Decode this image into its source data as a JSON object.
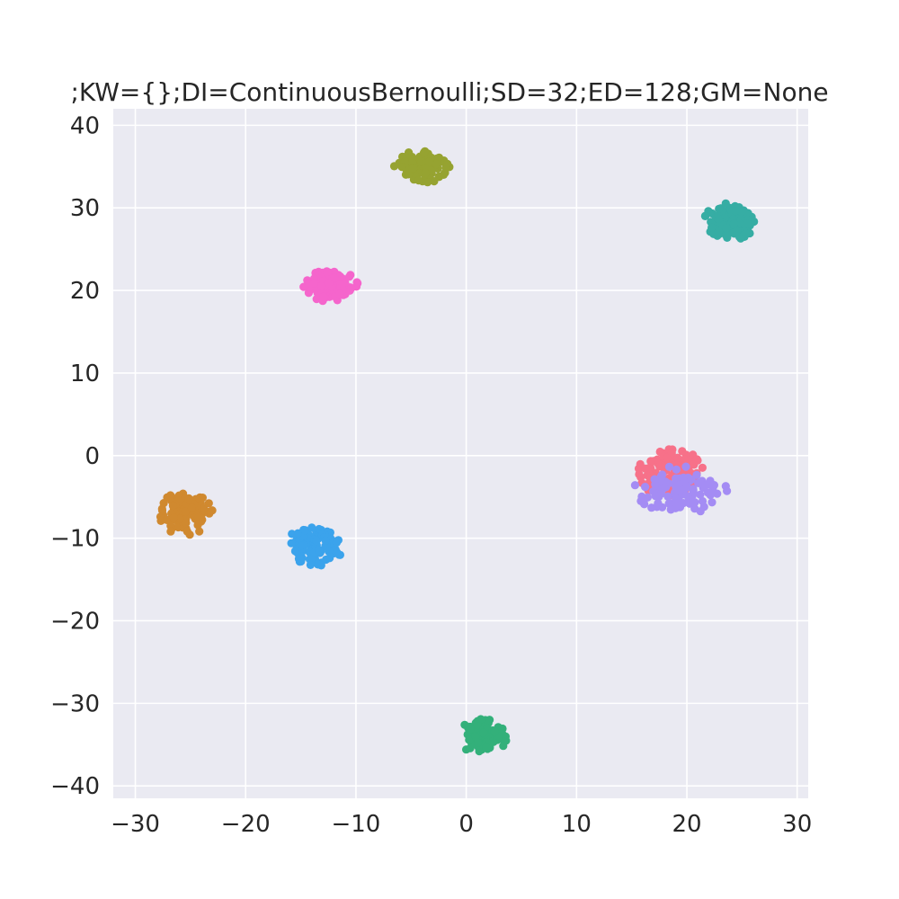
{
  "chart_data": {
    "type": "scatter",
    "title": ";KW={};DI=ContinuousBernoulli;SD=32;ED=128;GM=None",
    "xlabel": "",
    "ylabel": "",
    "xlim": [
      -32,
      31
    ],
    "ylim": [
      -41.5,
      42
    ],
    "xticks": [
      -30,
      -20,
      -10,
      0,
      10,
      20,
      30
    ],
    "yticks": [
      -40,
      -30,
      -20,
      -10,
      0,
      10,
      20,
      30,
      40
    ],
    "xtick_labels": [
      "−30",
      "−20",
      "−10",
      "0",
      "10",
      "20",
      "30"
    ],
    "ytick_labels": [
      "−40",
      "−30",
      "−20",
      "−10",
      "0",
      "10",
      "20",
      "30",
      "40"
    ],
    "grid": true,
    "background": "#eaeaf2",
    "legend": "none",
    "clusters": [
      {
        "color": "#f77189",
        "center": [
          18.5,
          -2.0
        ],
        "spread": [
          3.0,
          3.0
        ],
        "count": 120
      },
      {
        "color": "#a48cf4",
        "center": [
          19.5,
          -4.2
        ],
        "spread": [
          4.4,
          3.0
        ],
        "count": 110
      },
      {
        "color": "#d0892f",
        "center": [
          -25.5,
          -7.0
        ],
        "spread": [
          2.5,
          2.7
        ],
        "count": 115
      },
      {
        "color": "#3ba3ec",
        "center": [
          -13.8,
          -11.0
        ],
        "spread": [
          2.8,
          2.4
        ],
        "count": 115
      },
      {
        "color": "#33b07a",
        "center": [
          1.5,
          -34.0
        ],
        "spread": [
          2.2,
          2.2
        ],
        "count": 110
      },
      {
        "color": "#36ada4",
        "center": [
          23.8,
          28.3
        ],
        "spread": [
          2.4,
          2.3
        ],
        "count": 120
      },
      {
        "color": "#96a331",
        "center": [
          -4.0,
          35.0
        ],
        "spread": [
          2.6,
          2.0
        ],
        "count": 110
      },
      {
        "color": "#f565cc",
        "center": [
          -12.3,
          20.5
        ],
        "spread": [
          2.6,
          2.0
        ],
        "count": 115
      }
    ]
  }
}
